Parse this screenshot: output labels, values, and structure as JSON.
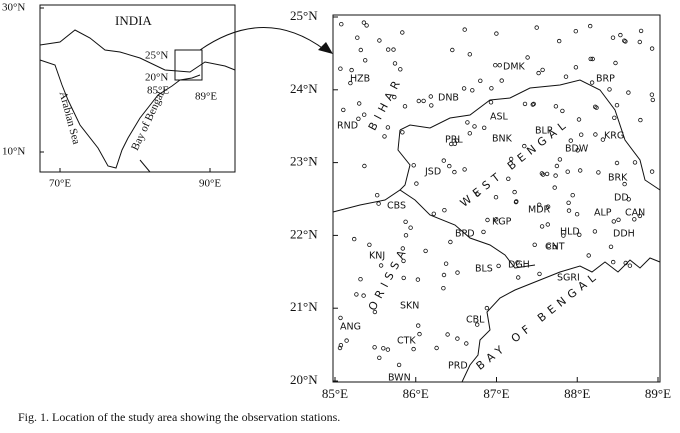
{
  "inset": {
    "title": "INDIA",
    "lat_ticks": [
      {
        "value": 30,
        "label": "30°N"
      },
      {
        "value": 10,
        "label": "10°N"
      }
    ],
    "lon_ticks": [
      {
        "value": 70,
        "label": "70°E"
      },
      {
        "value": 90,
        "label": "90°E"
      }
    ],
    "box_labels": [
      "25°N",
      "20°N",
      "85°E",
      "89°E"
    ],
    "seas": [
      "Arabian Sea",
      "Bay of Bengal"
    ]
  },
  "map": {
    "lat_ticks": [
      {
        "value": 25,
        "label": "25°N"
      },
      {
        "value": 24,
        "label": "24°N"
      },
      {
        "value": 23,
        "label": "23°N"
      },
      {
        "value": 22,
        "label": "22°N"
      },
      {
        "value": 21,
        "label": "21°N"
      },
      {
        "value": 20,
        "label": "20°N"
      }
    ],
    "lon_ticks": [
      {
        "value": 85,
        "label": "85°E"
      },
      {
        "value": 86,
        "label": "86°E"
      },
      {
        "value": 87,
        "label": "87°E"
      },
      {
        "value": 88,
        "label": "88°E"
      },
      {
        "value": 89,
        "label": "89°E"
      }
    ],
    "regions": [
      "BIHAR",
      "WEST BENGAL",
      "ORISSA",
      "BAY OF BENGAL"
    ],
    "stations": [
      "HZB",
      "RND",
      "DNB",
      "DMK",
      "BRP",
      "ASL",
      "PRL",
      "BNK",
      "BLP",
      "BDW",
      "KRG",
      "JSD",
      "CBS",
      "BRK",
      "DD",
      "MDR",
      "KGP",
      "ALP",
      "CAN",
      "BPD",
      "HLD",
      "DDH",
      "CNT",
      "KNJ",
      "DGH",
      "BLS",
      "SGRI",
      "SKN",
      "CBL",
      "ANG",
      "CTK",
      "PRD",
      "BWN"
    ]
  },
  "caption": "Fig. 1. Location of the study area showing the observation stations."
}
